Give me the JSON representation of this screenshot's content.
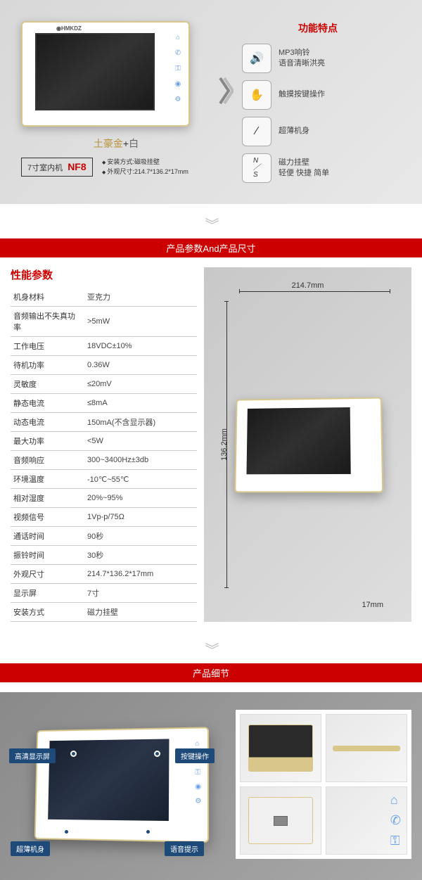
{
  "section1": {
    "logo": "◉HMKDZ",
    "color_label_gold": "土豪金",
    "color_label_plus": "+",
    "color_label_white": "白",
    "model_prefix": "7寸室内机",
    "model": "NF8",
    "install1": "安装方式:磁吸挂壁",
    "install2": "外观尺寸:214.7*136.2*17mm",
    "features_title": "功能特点",
    "features": [
      {
        "icon": "🔊",
        "line1": "MP3响铃",
        "line2": "语音清晰洪亮"
      },
      {
        "icon": "✋",
        "line1": "触摸按键操作",
        "line2": ""
      },
      {
        "icon": "⁄",
        "line1": "超薄机身",
        "line2": ""
      },
      {
        "icon": "N/S",
        "line1": "磁力挂壁",
        "line2": "轻便 快捷 简单"
      }
    ]
  },
  "band1": "产品参数And产品尺寸",
  "specs": {
    "title": "性能参数",
    "rows": [
      [
        "机身材料",
        "亚克力"
      ],
      [
        "音频输出不失真功率",
        ">5mW"
      ],
      [
        "工作电压",
        "18VDC±10%"
      ],
      [
        "待机功率",
        "0.36W"
      ],
      [
        "灵敏度",
        "≤20mV"
      ],
      [
        "静态电流",
        "≤8mA"
      ],
      [
        "动态电流",
        "150mA(不含显示器)"
      ],
      [
        "最大功率",
        "<5W"
      ],
      [
        "音频响应",
        "300~3400Hz±3db"
      ],
      [
        "环境温度",
        "-10℃~55℃"
      ],
      [
        "相对湿度",
        "20%~95%"
      ],
      [
        "视频信号",
        "1Vp-p/75Ω"
      ],
      [
        "通话时间",
        "90秒"
      ],
      [
        "振铃时间",
        "30秒"
      ],
      [
        "外观尺寸",
        "214.7*136.2*17mm"
      ],
      [
        "显示屏",
        "7寸"
      ],
      [
        "安装方式",
        "磁力挂壁"
      ]
    ]
  },
  "dims": {
    "w": "214.7mm",
    "h": "136.2mm",
    "d": "17mm"
  },
  "band2": "产品细节",
  "callouts": {
    "c1": "高清显示屏",
    "c2": "超薄机身",
    "c3": "按键操作",
    "c4": "语音提示"
  },
  "colors": {
    "accent_red": "#c00",
    "gold_border": "#d8c68a",
    "icon_blue": "#6aa0e8",
    "callout_bg": "#1e4a7a"
  }
}
